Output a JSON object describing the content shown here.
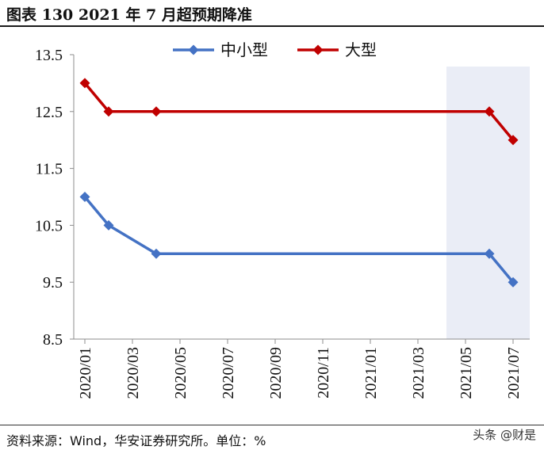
{
  "title": "图表 130 2021 年 7 月超预期降准",
  "source": "资料来源：Wind，华安证券研究所。单位：%",
  "watermark": "头条 @财是",
  "chart_data": {
    "type": "line",
    "x": [
      "2020/01",
      "2020/02",
      "2020/04",
      "2021/06",
      "2021/07"
    ],
    "x_tick_labels": [
      "2020/01",
      "2020/03",
      "2020/05",
      "2020/07",
      "2020/09",
      "2020/11",
      "2021/01",
      "2021/03",
      "2021/05",
      "2021/07"
    ],
    "ylim": [
      8.5,
      13.5
    ],
    "y_ticks": [
      "8.5",
      "9.5",
      "10.5",
      "11.5",
      "12.5",
      "13.5"
    ],
    "grid": false,
    "legend_position": "top",
    "highlight_range": [
      "2021/05",
      "2021/07"
    ],
    "series": [
      {
        "name": "中小型",
        "color": "#4472C4",
        "values": [
          11.0,
          10.5,
          10.0,
          10.0,
          9.5
        ]
      },
      {
        "name": "大型",
        "color": "#C00000",
        "values": [
          13.0,
          12.5,
          12.5,
          12.5,
          12.0
        ]
      }
    ]
  }
}
